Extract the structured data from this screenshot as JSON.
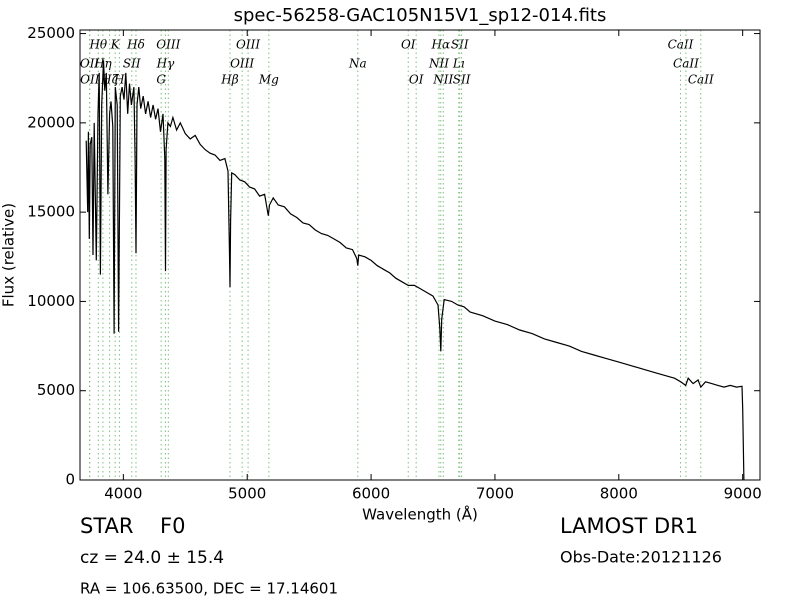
{
  "chart_data": {
    "type": "line",
    "title": "spec-56258-GAC105N15V1_sp12-014.fits",
    "xlabel": "Wavelength (Å)",
    "ylabel": "Flux (relative)",
    "xlim": [
      3650,
      9140
    ],
    "ylim": [
      0,
      25200
    ],
    "xticks": [
      4000,
      5000,
      6000,
      7000,
      8000,
      9000
    ],
    "yticks": [
      0,
      5000,
      10000,
      15000,
      20000,
      25000
    ],
    "color": "#000000",
    "line_color": "#7fbf7f",
    "x": [
      3700,
      3712,
      3718,
      3725,
      3732,
      3745,
      3755,
      3765,
      3782,
      3795,
      3805,
      3815,
      3825,
      3840,
      3850,
      3862,
      3875,
      3889,
      3900,
      3915,
      3925,
      3935,
      3950,
      3962,
      3975,
      3990,
      4005,
      4020,
      4035,
      4050,
      4065,
      4085,
      4095,
      4102,
      4110,
      4125,
      4140,
      4160,
      4180,
      4200,
      4220,
      4240,
      4260,
      4280,
      4300,
      4320,
      4335,
      4340,
      4345,
      4360,
      4380,
      4400,
      4430,
      4460,
      4500,
      4540,
      4580,
      4620,
      4660,
      4700,
      4740,
      4780,
      4820,
      4845,
      4856,
      4861,
      4866,
      4875,
      4900,
      4940,
      4980,
      5020,
      5060,
      5100,
      5140,
      5170,
      5180,
      5210,
      5250,
      5300,
      5350,
      5400,
      5450,
      5500,
      5550,
      5600,
      5650,
      5700,
      5750,
      5800,
      5850,
      5885,
      5893,
      5900,
      5950,
      6000,
      6050,
      6100,
      6150,
      6200,
      6250,
      6300,
      6350,
      6400,
      6450,
      6500,
      6540,
      6555,
      6563,
      6570,
      6590,
      6650,
      6700,
      6750,
      6800,
      6900,
      7000,
      7100,
      7200,
      7300,
      7400,
      7500,
      7600,
      7700,
      7800,
      7900,
      8000,
      8100,
      8200,
      8300,
      8400,
      8450,
      8500,
      8540,
      8560,
      8600,
      8640,
      8662,
      8700,
      8750,
      8800,
      8850,
      8900,
      8950,
      8995,
      9000,
      9010
    ],
    "values": [
      19000,
      15000,
      19500,
      13500,
      18800,
      19200,
      12600,
      20000,
      12300,
      20500,
      22800,
      11500,
      21000,
      23500,
      21800,
      22800,
      16000,
      20500,
      21200,
      19800,
      8200,
      22000,
      21000,
      8300,
      21500,
      22000,
      21300,
      22800,
      20500,
      22200,
      21000,
      22000,
      18000,
      12700,
      21000,
      22000,
      20800,
      21500,
      20500,
      21200,
      20300,
      21000,
      20200,
      20800,
      19500,
      20500,
      18000,
      11700,
      18500,
      20000,
      19800,
      20300,
      19600,
      20000,
      19400,
      19100,
      19300,
      18800,
      18500,
      18300,
      18200,
      17900,
      18000,
      17300,
      13000,
      10800,
      14500,
      17200,
      17100,
      16800,
      16700,
      16400,
      16300,
      15900,
      16000,
      14800,
      15400,
      15800,
      15400,
      15300,
      14900,
      14700,
      14400,
      14300,
      14000,
      13800,
      13700,
      13500,
      13300,
      13000,
      12900,
      12400,
      12000,
      12600,
      12500,
      12300,
      12000,
      11800,
      11600,
      11300,
      11100,
      10900,
      10900,
      10700,
      10500,
      10300,
      9800,
      8500,
      7200,
      9000,
      10100,
      10000,
      9800,
      9700,
      9400,
      9200,
      8900,
      8700,
      8400,
      8200,
      7900,
      7700,
      7500,
      7200,
      7000,
      6800,
      6600,
      6400,
      6200,
      6000,
      5800,
      5700,
      5500,
      5300,
      5700,
      5400,
      5600,
      5200,
      5500,
      5400,
      5300,
      5200,
      5300,
      5200,
      5250,
      4000,
      0
    ],
    "spectral_lines": [
      [
        {
          "label": "Hθ",
          "x": 3798
        },
        {
          "label": "K",
          "x": 3934
        },
        {
          "label": "Hδ",
          "x": 4102
        },
        {
          "label": "OIII",
          "x": 4363
        },
        {
          "label": "OIII",
          "x": 5007
        },
        {
          "label": "OI",
          "x": 6300
        },
        {
          "label": "Hα",
          "x": 6563
        },
        {
          "label": "SII",
          "x": 6716
        },
        {
          "label": "CaII",
          "x": 8498
        }
      ],
      [
        {
          "label": "OII",
          "x": 3727
        },
        {
          "label": "Hη",
          "x": 3835
        },
        {
          "label": "SII",
          "x": 4068
        },
        {
          "label": "Hγ",
          "x": 4340
        },
        {
          "label": "OIII",
          "x": 4959
        },
        {
          "label": "Na",
          "x": 5893
        },
        {
          "label": "NII",
          "x": 6548
        },
        {
          "label": "Lı",
          "x": 6708
        },
        {
          "label": "CaII",
          "x": 8542
        }
      ],
      [
        {
          "label": "OII",
          "x": 3729
        },
        {
          "label": "Hζ",
          "x": 3889
        },
        {
          "label": "H",
          "x": 3968
        },
        {
          "label": "G",
          "x": 4305
        },
        {
          "label": "Hβ",
          "x": 4861
        },
        {
          "label": "Mg",
          "x": 5175
        },
        {
          "label": "OI",
          "x": 6364
        },
        {
          "label": "NII",
          "x": 6583
        },
        {
          "label": "SII",
          "x": 6731
        },
        {
          "label": "CaII",
          "x": 8662
        }
      ]
    ],
    "object_class": "STAR",
    "subclass": "F0",
    "redshift": "cz = 24.0 ± 15.4",
    "coordinates": "RA = 106.63500, DEC = 17.14601",
    "survey": "LAMOST DR1",
    "obs_date": "Obs-Date:20121126"
  }
}
